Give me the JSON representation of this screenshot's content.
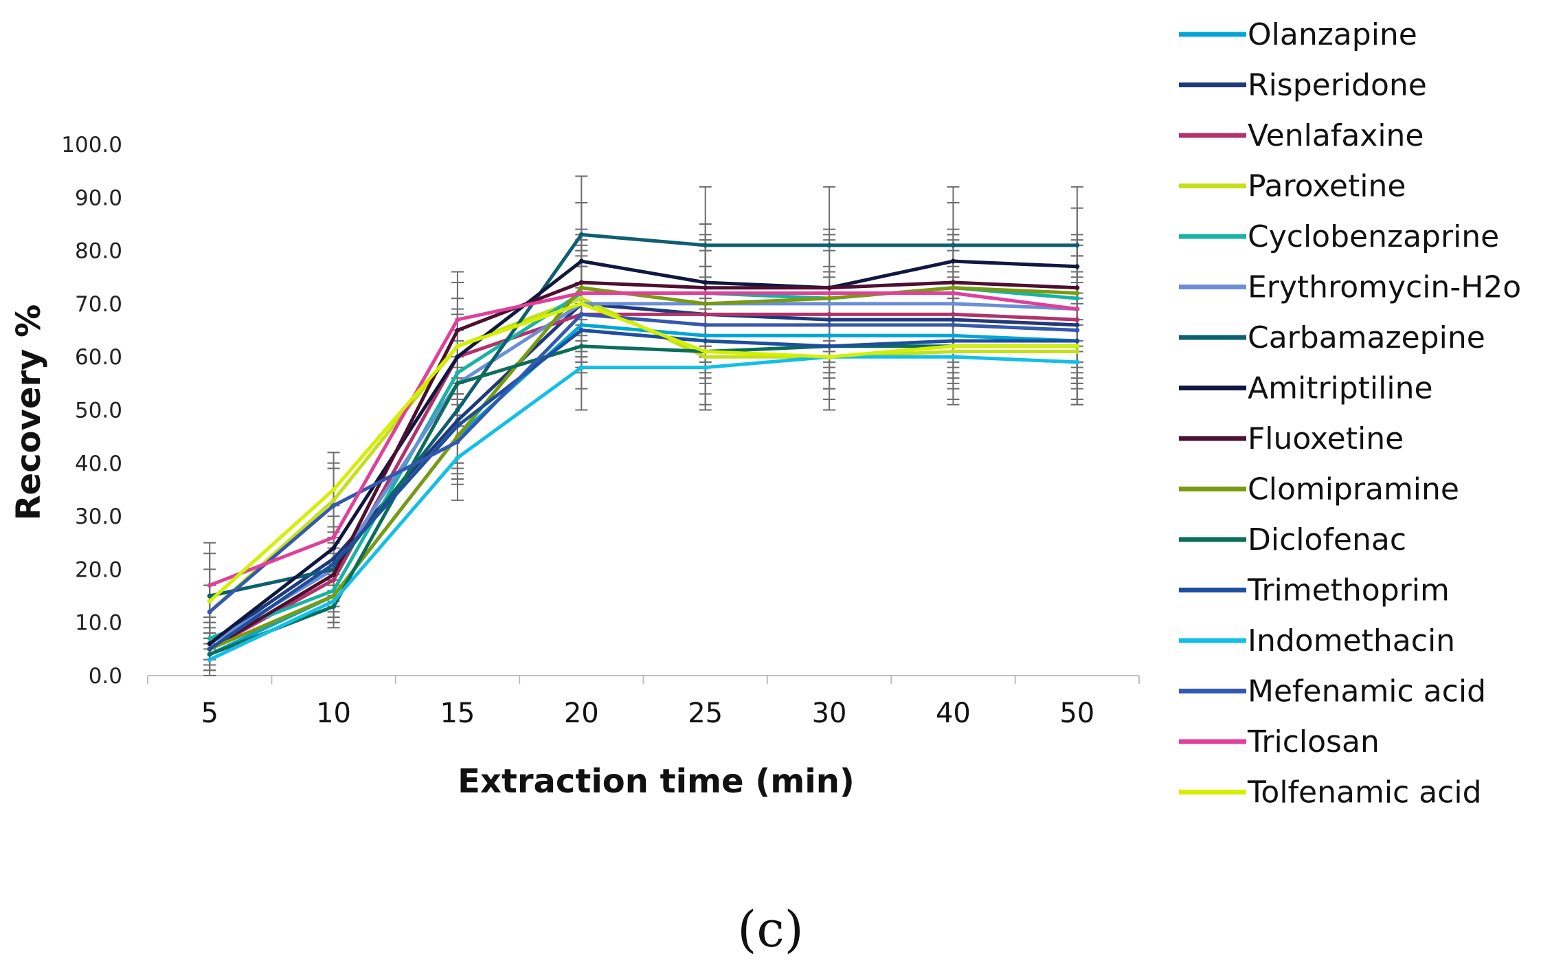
{
  "chart_data": {
    "type": "line",
    "title": "",
    "xlabel": "Extraction time (min)",
    "ylabel": "Recovery %",
    "categories": [
      "5",
      "10",
      "15",
      "20",
      "25",
      "30",
      "40",
      "50"
    ],
    "ylim": [
      0,
      100
    ],
    "yticks": [
      "0.0",
      "10.0",
      "20.0",
      "30.0",
      "40.0",
      "50.0",
      "60.0",
      "70.0",
      "80.0",
      "90.0",
      "100.0"
    ],
    "legend_position": "right",
    "error_bars": true,
    "series": [
      {
        "name": "Olanzapine",
        "color": "#00a6d6",
        "values": [
          4,
          15,
          45,
          66,
          64,
          64,
          64,
          63
        ],
        "errors": [
          3,
          4,
          7,
          8,
          8,
          8,
          8,
          8
        ]
      },
      {
        "name": "Risperidone",
        "color": "#1f3a7a",
        "values": [
          6,
          22,
          48,
          70,
          68,
          67,
          67,
          66
        ],
        "errors": [
          3,
          5,
          8,
          9,
          9,
          9,
          9,
          9
        ]
      },
      {
        "name": "Venlafaxine",
        "color": "#b0336a",
        "values": [
          5,
          18,
          60,
          68,
          68,
          68,
          68,
          67
        ],
        "errors": [
          3,
          5,
          8,
          9,
          9,
          9,
          9,
          9
        ]
      },
      {
        "name": "Paroxetine",
        "color": "#c4e01b",
        "values": [
          12,
          33,
          62,
          71,
          60,
          60,
          61,
          61
        ],
        "errors": [
          5,
          7,
          9,
          10,
          10,
          10,
          10,
          10
        ]
      },
      {
        "name": "Cyclobenzaprine",
        "color": "#17b3a3",
        "values": [
          7,
          16,
          57,
          72,
          72,
          71,
          73,
          71
        ],
        "errors": [
          4,
          5,
          8,
          10,
          10,
          10,
          10,
          10
        ]
      },
      {
        "name": "Erythromycin-H2o",
        "color": "#6b8fd6",
        "values": [
          6,
          20,
          55,
          70,
          70,
          70,
          70,
          69
        ],
        "errors": [
          4,
          5,
          8,
          10,
          10,
          10,
          10,
          10
        ]
      },
      {
        "name": "Carbamazepine",
        "color": "#0f5f70",
        "values": [
          15,
          20,
          50,
          83,
          81,
          81,
          81,
          81
        ],
        "errors": [
          10,
          8,
          10,
          11,
          11,
          11,
          11,
          11
        ]
      },
      {
        "name": "Amitriptiline",
        "color": "#101840",
        "values": [
          6,
          24,
          60,
          78,
          74,
          73,
          78,
          77
        ],
        "errors": [
          4,
          6,
          9,
          11,
          11,
          11,
          11,
          11
        ]
      },
      {
        "name": "Fluoxetine",
        "color": "#4d1030",
        "values": [
          5,
          19,
          65,
          74,
          73,
          73,
          74,
          73
        ],
        "errors": [
          3,
          5,
          9,
          10,
          10,
          10,
          10,
          10
        ]
      },
      {
        "name": "Clomipramine",
        "color": "#7a9a10",
        "values": [
          5,
          15,
          45,
          73,
          70,
          71,
          73,
          72
        ],
        "errors": [
          3,
          5,
          8,
          10,
          10,
          10,
          10,
          10
        ]
      },
      {
        "name": "Diclofenac",
        "color": "#0a6e5a",
        "values": [
          4,
          13,
          55,
          62,
          61,
          62,
          62,
          62
        ],
        "errors": [
          3,
          4,
          8,
          8,
          8,
          8,
          8,
          8
        ]
      },
      {
        "name": "Trimethoprim",
        "color": "#1e4f9e",
        "values": [
          5,
          21,
          47,
          65,
          63,
          62,
          63,
          63
        ],
        "errors": [
          3,
          5,
          8,
          8,
          8,
          8,
          8,
          8
        ]
      },
      {
        "name": "Indomethacin",
        "color": "#12bfe8",
        "values": [
          3,
          14,
          41,
          58,
          58,
          60,
          60,
          59
        ],
        "errors": [
          3,
          4,
          8,
          8,
          8,
          8,
          8,
          8
        ]
      },
      {
        "name": "Mefenamic acid",
        "color": "#3358b0",
        "values": [
          12,
          32,
          44,
          68,
          66,
          66,
          66,
          65
        ],
        "errors": [
          5,
          7,
          8,
          9,
          9,
          9,
          9,
          9
        ]
      },
      {
        "name": "Triclosan",
        "color": "#e0409a",
        "values": [
          17,
          26,
          67,
          72,
          72,
          72,
          72,
          69
        ],
        "errors": [
          6,
          6,
          9,
          10,
          10,
          10,
          10,
          10
        ]
      },
      {
        "name": "Tolfenamic acid",
        "color": "#d4f000",
        "values": [
          14,
          35,
          62,
          70,
          61,
          60,
          62,
          62
        ],
        "errors": [
          6,
          7,
          9,
          10,
          10,
          10,
          10,
          10
        ]
      }
    ]
  },
  "panel_label": "(c)"
}
